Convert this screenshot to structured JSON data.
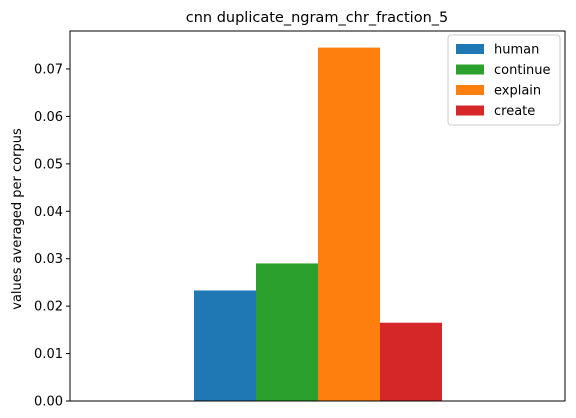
{
  "chart_data": {
    "type": "bar",
    "title": "cnn duplicate_ngram_chr_fraction_5",
    "xlabel": "",
    "ylabel": "values averaged per corpus",
    "ylim": [
      0,
      0.078
    ],
    "yticks": [
      "0.00",
      "0.01",
      "0.02",
      "0.03",
      "0.04",
      "0.05",
      "0.06",
      "0.07"
    ],
    "grid": false,
    "legend_position": "top-right",
    "series": [
      {
        "name": "human",
        "value": 0.0233,
        "color": "#1f77b4"
      },
      {
        "name": "continue",
        "value": 0.029,
        "color": "#2ca02c"
      },
      {
        "name": "explain",
        "value": 0.0745,
        "color": "#ff7f0e"
      },
      {
        "name": "create",
        "value": 0.0165,
        "color": "#d62728"
      }
    ]
  }
}
